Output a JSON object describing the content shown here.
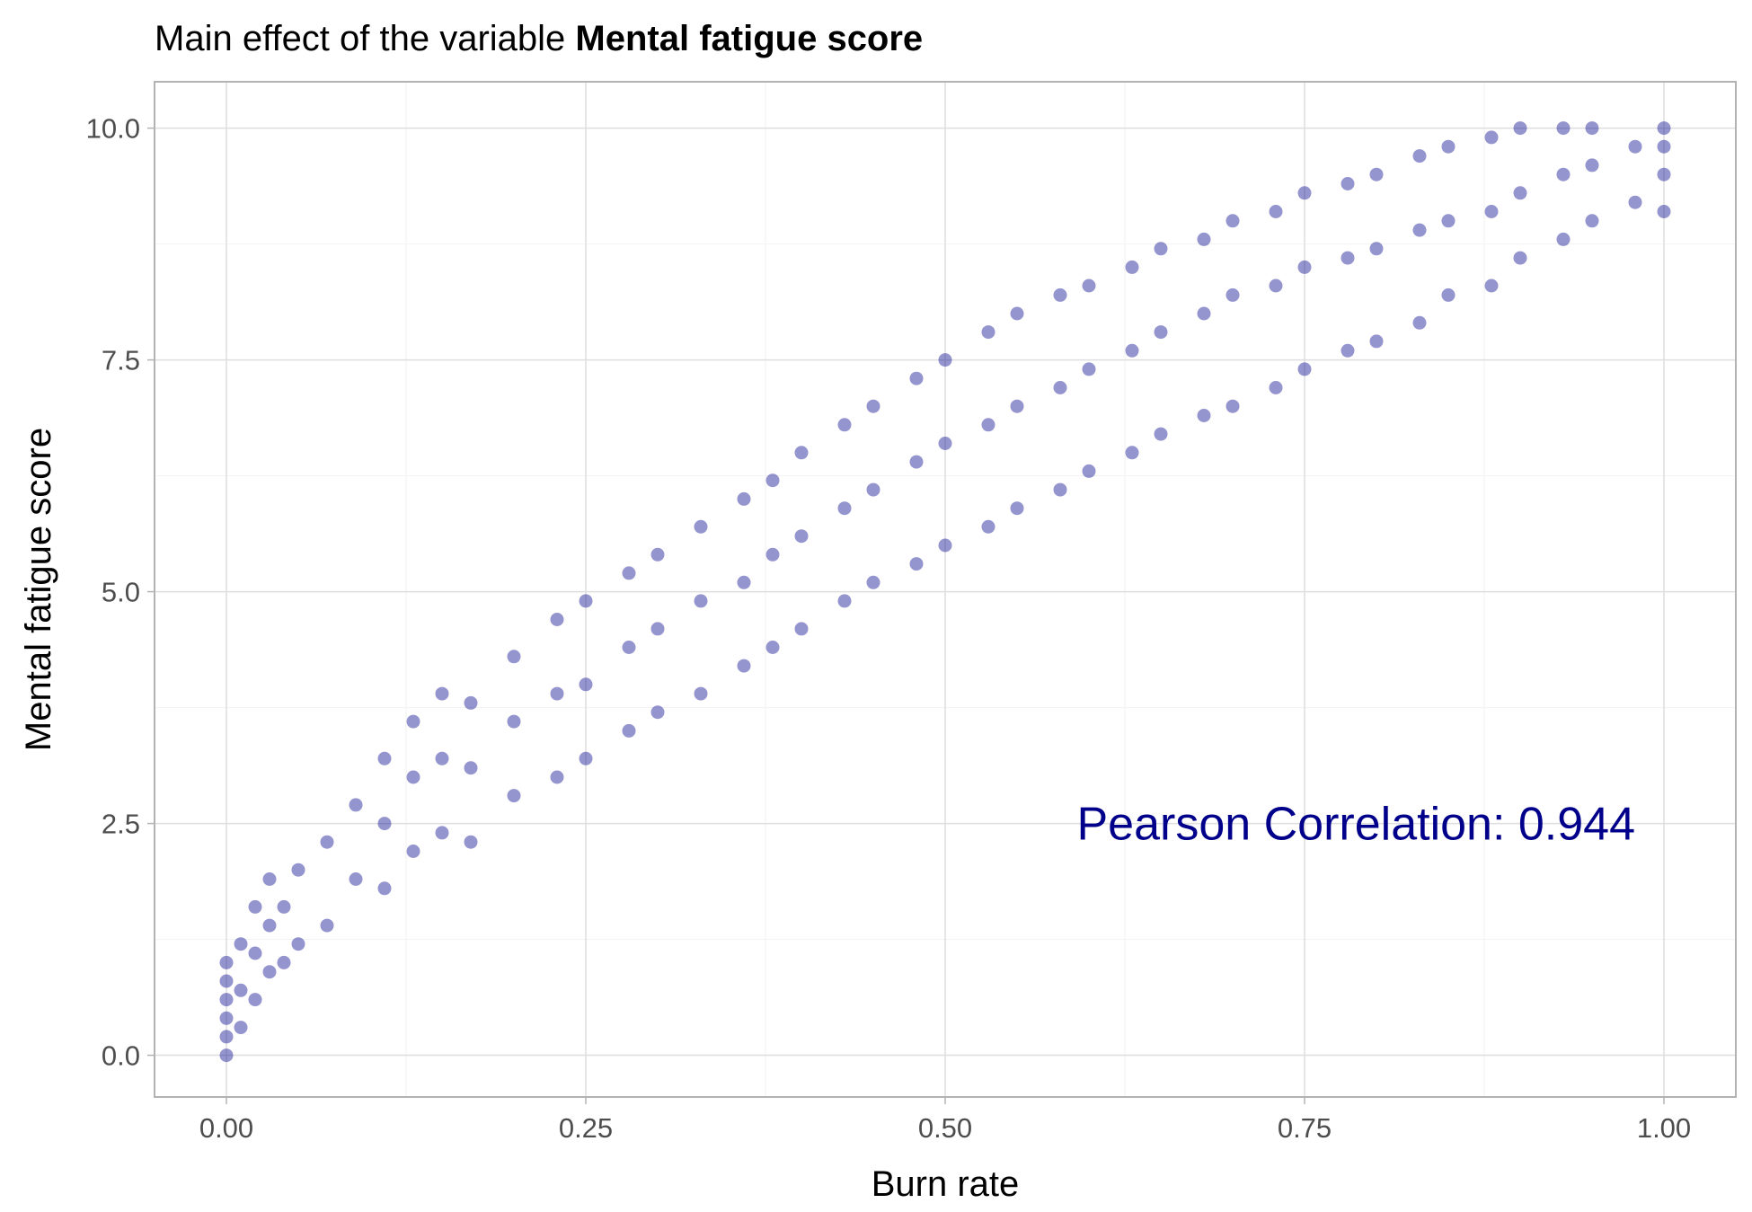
{
  "chart_data": {
    "type": "scatter",
    "title_prefix": "Main effect of the variable ",
    "title_variable": "Mental fatigue score",
    "xlabel": "Burn rate",
    "ylabel": "Mental fatigue score",
    "xlim": [
      -0.05,
      1.05
    ],
    "ylim": [
      -0.45,
      10.5
    ],
    "x_ticks": [
      0.0,
      0.25,
      0.5,
      0.75,
      1.0
    ],
    "x_tick_labels": [
      "0.00",
      "0.25",
      "0.50",
      "0.75",
      "1.00"
    ],
    "y_ticks": [
      0.0,
      2.5,
      5.0,
      7.5,
      10.0
    ],
    "y_tick_labels": [
      "0.0",
      "2.5",
      "5.0",
      "7.5",
      "10.0"
    ],
    "grid": true,
    "annotation": "Pearson Correlation: 0.944",
    "annotation_position": [
      0.98,
      2.5
    ],
    "point_color": "#00008B",
    "grid_color": "#ebebeb",
    "panel_border_color": "#b3b3b3",
    "points": [
      [
        0.0,
        0.0
      ],
      [
        0.0,
        0.2
      ],
      [
        0.0,
        0.4
      ],
      [
        0.0,
        0.6
      ],
      [
        0.0,
        0.8
      ],
      [
        0.0,
        1.0
      ],
      [
        0.01,
        0.3
      ],
      [
        0.01,
        0.7
      ],
      [
        0.01,
        1.2
      ],
      [
        0.02,
        0.6
      ],
      [
        0.02,
        1.1
      ],
      [
        0.02,
        1.6
      ],
      [
        0.03,
        0.9
      ],
      [
        0.03,
        1.4
      ],
      [
        0.03,
        1.9
      ],
      [
        0.04,
        1.0
      ],
      [
        0.04,
        1.6
      ],
      [
        0.05,
        1.2
      ],
      [
        0.05,
        2.0
      ],
      [
        0.07,
        1.4
      ],
      [
        0.07,
        2.3
      ],
      [
        0.09,
        1.9
      ],
      [
        0.09,
        2.7
      ],
      [
        0.11,
        1.8
      ],
      [
        0.11,
        2.5
      ],
      [
        0.11,
        3.2
      ],
      [
        0.13,
        2.2
      ],
      [
        0.13,
        3.0
      ],
      [
        0.13,
        3.6
      ],
      [
        0.15,
        2.4
      ],
      [
        0.15,
        3.2
      ],
      [
        0.15,
        3.9
      ],
      [
        0.17,
        2.3
      ],
      [
        0.17,
        3.1
      ],
      [
        0.17,
        3.8
      ],
      [
        0.2,
        2.8
      ],
      [
        0.2,
        3.6
      ],
      [
        0.2,
        4.3
      ],
      [
        0.23,
        3.0
      ],
      [
        0.23,
        3.9
      ],
      [
        0.23,
        4.7
      ],
      [
        0.25,
        3.2
      ],
      [
        0.25,
        4.0
      ],
      [
        0.25,
        4.9
      ],
      [
        0.28,
        3.5
      ],
      [
        0.28,
        4.4
      ],
      [
        0.28,
        5.2
      ],
      [
        0.3,
        3.7
      ],
      [
        0.3,
        4.6
      ],
      [
        0.3,
        5.4
      ],
      [
        0.33,
        3.9
      ],
      [
        0.33,
        4.9
      ],
      [
        0.33,
        5.7
      ],
      [
        0.36,
        4.2
      ],
      [
        0.36,
        5.1
      ],
      [
        0.36,
        6.0
      ],
      [
        0.38,
        4.4
      ],
      [
        0.38,
        5.4
      ],
      [
        0.38,
        6.2
      ],
      [
        0.4,
        4.6
      ],
      [
        0.4,
        5.6
      ],
      [
        0.4,
        6.5
      ],
      [
        0.43,
        4.9
      ],
      [
        0.43,
        5.9
      ],
      [
        0.43,
        6.8
      ],
      [
        0.45,
        5.1
      ],
      [
        0.45,
        6.1
      ],
      [
        0.45,
        7.0
      ],
      [
        0.48,
        5.3
      ],
      [
        0.48,
        6.4
      ],
      [
        0.48,
        7.3
      ],
      [
        0.5,
        5.5
      ],
      [
        0.5,
        6.6
      ],
      [
        0.5,
        7.5
      ],
      [
        0.53,
        5.7
      ],
      [
        0.53,
        6.8
      ],
      [
        0.53,
        7.8
      ],
      [
        0.55,
        5.9
      ],
      [
        0.55,
        7.0
      ],
      [
        0.55,
        8.0
      ],
      [
        0.58,
        6.1
      ],
      [
        0.58,
        7.2
      ],
      [
        0.58,
        8.2
      ],
      [
        0.6,
        6.3
      ],
      [
        0.6,
        7.4
      ],
      [
        0.6,
        8.3
      ],
      [
        0.63,
        6.5
      ],
      [
        0.63,
        7.6
      ],
      [
        0.63,
        8.5
      ],
      [
        0.65,
        6.7
      ],
      [
        0.65,
        7.8
      ],
      [
        0.65,
        8.7
      ],
      [
        0.68,
        6.9
      ],
      [
        0.68,
        8.0
      ],
      [
        0.68,
        8.8
      ],
      [
        0.7,
        7.0
      ],
      [
        0.7,
        8.2
      ],
      [
        0.7,
        9.0
      ],
      [
        0.73,
        7.2
      ],
      [
        0.73,
        8.3
      ],
      [
        0.73,
        9.1
      ],
      [
        0.75,
        7.4
      ],
      [
        0.75,
        8.5
      ],
      [
        0.75,
        9.3
      ],
      [
        0.78,
        7.6
      ],
      [
        0.78,
        8.6
      ],
      [
        0.78,
        9.4
      ],
      [
        0.8,
        7.7
      ],
      [
        0.8,
        8.7
      ],
      [
        0.8,
        9.5
      ],
      [
        0.83,
        7.9
      ],
      [
        0.83,
        8.9
      ],
      [
        0.83,
        9.7
      ],
      [
        0.85,
        8.2
      ],
      [
        0.85,
        9.0
      ],
      [
        0.85,
        9.8
      ],
      [
        0.88,
        8.3
      ],
      [
        0.88,
        9.1
      ],
      [
        0.88,
        9.9
      ],
      [
        0.9,
        8.6
      ],
      [
        0.9,
        9.3
      ],
      [
        0.9,
        10.0
      ],
      [
        0.93,
        8.8
      ],
      [
        0.93,
        9.5
      ],
      [
        0.93,
        10.0
      ],
      [
        0.95,
        9.0
      ],
      [
        0.95,
        9.6
      ],
      [
        0.95,
        10.0
      ],
      [
        0.98,
        9.2
      ],
      [
        0.98,
        9.8
      ],
      [
        1.0,
        9.1
      ],
      [
        1.0,
        9.5
      ],
      [
        1.0,
        9.8
      ],
      [
        1.0,
        10.0
      ]
    ]
  }
}
